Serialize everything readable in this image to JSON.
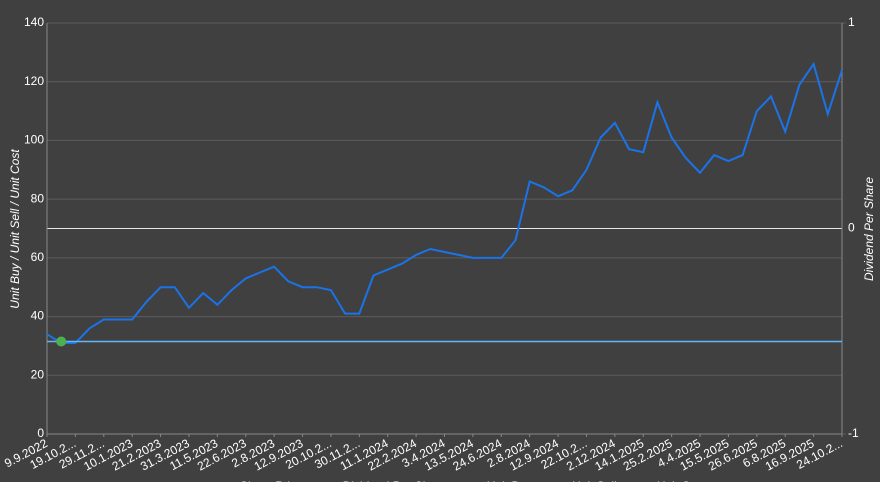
{
  "chart_data": {
    "type": "line",
    "y_axis_label": "Unit Buy / Unit Sell / Unit Cost",
    "y2_axis_label": "Dividend Per Share",
    "xlim": [
      0,
      28
    ],
    "xticks": [
      {
        "value": 0,
        "label": "9.9.2022"
      },
      {
        "value": 1,
        "label": "19.10.2..."
      },
      {
        "value": 2,
        "label": "29.11.2..."
      },
      {
        "value": 3,
        "label": "10.1.2023"
      },
      {
        "value": 4,
        "label": "21.2.2023"
      },
      {
        "value": 5,
        "label": "31.3.2023"
      },
      {
        "value": 6,
        "label": "11.5.2023"
      },
      {
        "value": 7,
        "label": "22.6.2023"
      },
      {
        "value": 8,
        "label": "2.8.2023"
      },
      {
        "value": 9,
        "label": "12.9.2023"
      },
      {
        "value": 10,
        "label": "20.10.2..."
      },
      {
        "value": 11,
        "label": "30.11.2..."
      },
      {
        "value": 12,
        "label": "11.1.2024"
      },
      {
        "value": 13,
        "label": "22.2.2024"
      },
      {
        "value": 14,
        "label": "3.4.2024"
      },
      {
        "value": 15,
        "label": "13.5.2024"
      },
      {
        "value": 16,
        "label": "24.6.2024"
      },
      {
        "value": 17,
        "label": "2.8.2024"
      },
      {
        "value": 18,
        "label": "12.9.2024"
      },
      {
        "value": 19,
        "label": "22.10.2..."
      },
      {
        "value": 20,
        "label": "2.12.2024"
      },
      {
        "value": 21,
        "label": "14.1.2025"
      },
      {
        "value": 22,
        "label": "25.2.2025"
      },
      {
        "value": 23,
        "label": "4.4.2025"
      },
      {
        "value": 24,
        "label": "15.5.2025"
      },
      {
        "value": 25,
        "label": "26.6.2025"
      },
      {
        "value": 26,
        "label": "6.8.2025"
      },
      {
        "value": 27,
        "label": "16.9.2025"
      },
      {
        "value": 28,
        "label": "24.10.2..."
      }
    ],
    "ylim": [
      0,
      140
    ],
    "yticks": [
      0,
      20,
      40,
      60,
      80,
      100,
      120,
      140
    ],
    "y2lim": [
      -1,
      1
    ],
    "y2ticks": [
      -1,
      0,
      1
    ],
    "grid": true,
    "legend": "bottom",
    "series": [
      {
        "name": "Share Price",
        "color": "#1a73e8",
        "x": [
          0,
          0.5,
          1,
          1.5,
          2,
          2.5,
          3,
          3.5,
          4,
          4.5,
          5,
          5.5,
          6,
          6.5,
          7,
          7.5,
          8,
          8.5,
          9,
          9.5,
          10,
          10.5,
          11,
          11.5,
          12,
          12.5,
          13,
          13.5,
          14,
          14.5,
          15,
          15.5,
          16,
          16.5,
          17,
          17.5,
          18,
          18.5,
          19,
          19.5,
          20,
          20.5,
          21,
          21.5,
          22,
          22.5,
          23,
          23.5,
          24,
          24.5,
          25,
          25.5,
          26,
          26.5,
          27,
          27.5,
          28
        ],
        "values": [
          34,
          31,
          31,
          36,
          39,
          39,
          39,
          45,
          50,
          50,
          43,
          48,
          44,
          49,
          53,
          55,
          57,
          52,
          50,
          50,
          49,
          41,
          41,
          54,
          56,
          58,
          61,
          63,
          62,
          61,
          60,
          60,
          60,
          66,
          86,
          84,
          81,
          83,
          90,
          101,
          106,
          97,
          96,
          113,
          101,
          94,
          89,
          95,
          93,
          95,
          110,
          115,
          103,
          119,
          126,
          109,
          124
        ]
      },
      {
        "name": "Dividend Per Share",
        "color": "#f0a030",
        "axis": "y2",
        "x": [],
        "values": []
      },
      {
        "name": "Unit Buy",
        "color": "#4caf50",
        "marker": "dot",
        "x": [
          0.5
        ],
        "values": [
          31.5
        ]
      },
      {
        "name": "Unit Sell",
        "color": "#e05030",
        "marker": "dot",
        "x": [],
        "values": []
      },
      {
        "name": "Unit Cost",
        "color": "#64b5f6",
        "x": [
          0,
          28
        ],
        "values": [
          31.5,
          31.5
        ]
      }
    ]
  }
}
